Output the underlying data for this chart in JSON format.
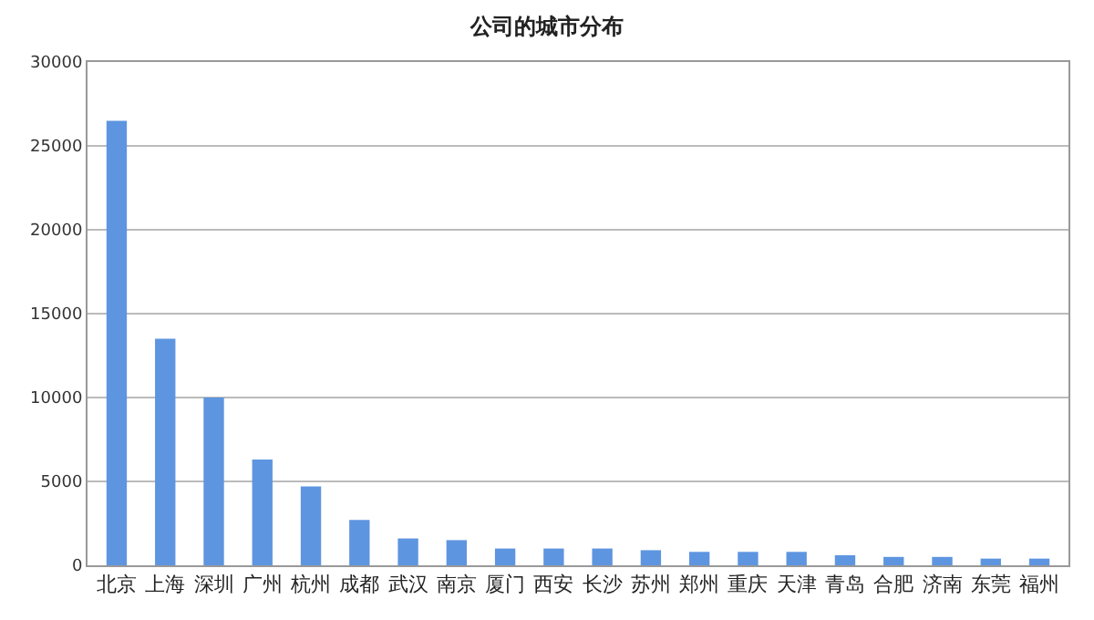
{
  "chart_data": {
    "type": "bar",
    "title": "公司的城市分布",
    "categories": [
      "北京",
      "上海",
      "深圳",
      "广州",
      "杭州",
      "成都",
      "武汉",
      "南京",
      "厦门",
      "西安",
      "长沙",
      "苏州",
      "郑州",
      "重庆",
      "天津",
      "青岛",
      "合肥",
      "济南",
      "东莞",
      "福州"
    ],
    "values": [
      26500,
      13500,
      10000,
      6300,
      4700,
      2700,
      1600,
      1500,
      1000,
      1000,
      1000,
      900,
      800,
      800,
      800,
      600,
      500,
      500,
      400,
      400
    ],
    "color": "#5e95e0",
    "ylim": [
      0,
      30000
    ],
    "yticks": [
      0,
      5000,
      10000,
      15000,
      20000,
      25000,
      30000
    ],
    "grid": "y"
  }
}
